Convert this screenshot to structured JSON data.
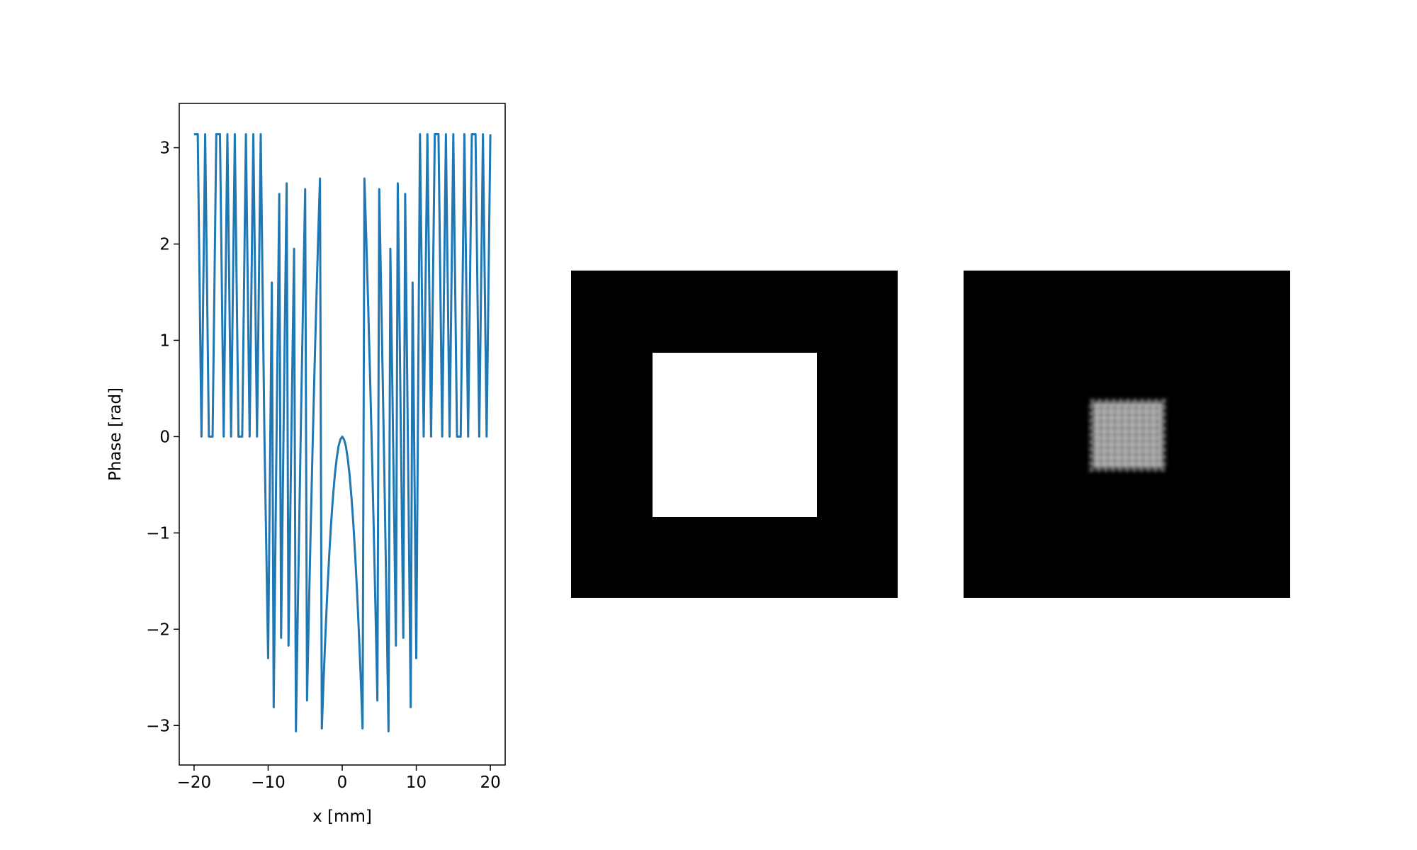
{
  "chart_data": {
    "type": "line",
    "xlabel": "x [mm]",
    "ylabel": "Phase [rad]",
    "color": "#1f77b4",
    "xlim": [
      -22,
      22
    ],
    "ylim": [
      -3.41,
      3.46
    ],
    "xticks": [
      {
        "value": -20,
        "label": "−20"
      },
      {
        "value": -10,
        "label": "−10"
      },
      0,
      10,
      20
    ],
    "yticks": [
      {
        "value": -3,
        "label": "−3"
      },
      {
        "value": -2,
        "label": "−2"
      },
      {
        "value": -1,
        "label": "−1"
      },
      0,
      1,
      2,
      3
    ],
    "x": [
      -20,
      -19.5,
      -19,
      -18.5,
      -18,
      -17.5,
      -17,
      -16.5,
      -16,
      -15.5,
      -15,
      -14.5,
      -14,
      -13.5,
      -13,
      -12.5,
      -12,
      -11.5,
      -11,
      -10.5,
      -10,
      -9.75,
      -9.5,
      -9.25,
      -9,
      -8.75,
      -8.5,
      -8.25,
      -8,
      -7.75,
      -7.5,
      -7.25,
      -7,
      -6.75,
      -6.5,
      -6.25,
      -6,
      -5.75,
      -5.5,
      -5.25,
      -5,
      -4.75,
      -4.5,
      -4.25,
      -4,
      -3.75,
      -3.5,
      -3.25,
      -3,
      -2.75,
      -2.5,
      -2.25,
      -2,
      -1.75,
      -1.5,
      -1.25,
      -1,
      -0.75,
      -0.5,
      -0.25,
      0,
      0.25,
      0.5,
      0.75,
      1,
      1.25,
      1.5,
      1.75,
      2,
      2.25,
      2.5,
      2.75,
      3,
      3.25,
      3.5,
      3.75,
      4,
      4.25,
      4.5,
      4.75,
      5,
      5.25,
      5.5,
      5.75,
      6,
      6.25,
      6.5,
      6.75,
      7,
      7.25,
      7.5,
      7.75,
      8,
      8.25,
      8.5,
      8.75,
      9,
      9.25,
      9.5,
      9.75,
      10,
      10.5,
      11,
      11.5,
      12,
      12.5,
      13,
      13.5,
      14,
      14.5,
      15,
      15.5,
      16,
      16.5,
      17,
      17.5,
      18,
      18.5,
      19,
      19.5,
      20
    ],
    "values": [
      3.14,
      3.14,
      0,
      3.14,
      0,
      0,
      3.14,
      3.14,
      0,
      3.14,
      0,
      3.14,
      0,
      0,
      3.14,
      0,
      3.14,
      0,
      3.14,
      0,
      -2.3,
      -0.33,
      1.6,
      -2.81,
      -0.98,
      0.79,
      2.52,
      -2.09,
      -0.47,
      1.11,
      2.63,
      -2.17,
      -0.75,
      0.62,
      1.95,
      -3.06,
      -1.83,
      -0.66,
      0.47,
      1.54,
      2.57,
      -2.74,
      -1.82,
      -0.94,
      -0.12,
      0.66,
      1.38,
      2.06,
      2.68,
      -3.03,
      -2.5,
      -2.03,
      -1.6,
      -1.23,
      -0.9,
      -0.63,
      -0.4,
      -0.23,
      -0.1,
      -0.03,
      0,
      -0.03,
      -0.1,
      -0.23,
      -0.4,
      -0.63,
      -0.9,
      -1.23,
      -1.6,
      -2.03,
      -2.5,
      -3.03,
      2.68,
      2.06,
      1.38,
      0.66,
      -0.12,
      -0.94,
      -1.82,
      -2.74,
      2.57,
      1.54,
      0.47,
      -0.66,
      -1.83,
      -3.06,
      1.95,
      0.62,
      -0.75,
      -2.17,
      2.63,
      1.11,
      -0.47,
      -2.09,
      2.52,
      0.79,
      -0.98,
      -2.81,
      1.6,
      -0.33,
      -2.3,
      3.14,
      0,
      3.14,
      0,
      3.14,
      3.14,
      0,
      3.14,
      0,
      3.14,
      0,
      0,
      3.14,
      0,
      3.14,
      3.14,
      0,
      3.14,
      0,
      3.14
    ]
  }
}
